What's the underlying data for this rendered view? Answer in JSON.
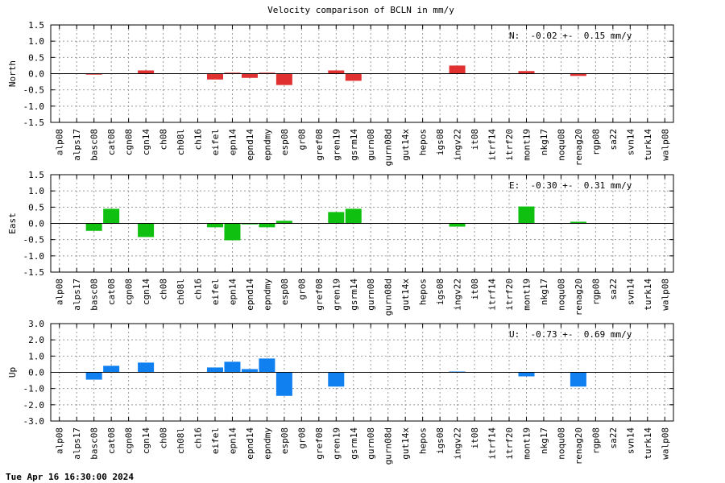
{
  "chart_data": {
    "title": "Velocity comparison of BCLN in mm/y",
    "type": "bar",
    "categories": [
      "alp08",
      "alps17",
      "basc08",
      "cat08",
      "cgn08",
      "cgn14",
      "ch08",
      "ch08l",
      "ch16",
      "eifel",
      "epn14",
      "epnd14",
      "epndmy",
      "esp08",
      "gr08",
      "gref08",
      "gren19",
      "gsrm14",
      "gurn08",
      "gurn08d",
      "gut14x",
      "hepos",
      "igs08",
      "ingv22",
      "it08",
      "itrf14",
      "itrf20",
      "mont19",
      "nkg17",
      "noqu08",
      "renag20",
      "rgp08",
      "sa22",
      "svn14",
      "turk14",
      "walp08"
    ],
    "panels": [
      {
        "ylabel": "North",
        "color": "#e03030",
        "ylim": [
          -1.5,
          1.5
        ],
        "ticks": [
          "1.5",
          "1.0",
          "0.5",
          "0.0",
          "-0.5",
          "-1.0",
          "-1.5"
        ],
        "tick_values": [
          1.5,
          1.0,
          0.5,
          0.0,
          -0.5,
          -1.0,
          -1.5
        ],
        "stat": "N:  -0.02 +-  0.15 mm/y",
        "values": [
          0,
          0,
          -0.03,
          0,
          0,
          0.1,
          0,
          0,
          0,
          -0.18,
          0.03,
          -0.13,
          0.03,
          -0.35,
          0,
          0,
          0.1,
          -0.22,
          0,
          0,
          0,
          0,
          0,
          0.25,
          0,
          0,
          0,
          0.08,
          0,
          0,
          -0.07,
          0,
          0,
          0,
          0,
          0
        ]
      },
      {
        "ylabel": "East",
        "color": "#10c010",
        "ylim": [
          -1.5,
          1.5
        ],
        "ticks": [
          "1.5",
          "1.0",
          "0.5",
          "0.0",
          "-0.5",
          "-1.0",
          "-1.5"
        ],
        "tick_values": [
          1.5,
          1.0,
          0.5,
          0.0,
          -0.5,
          -1.0,
          -1.5
        ],
        "stat": "E:  -0.30 +-  0.31 mm/y",
        "values": [
          0,
          0,
          -0.23,
          0.45,
          0,
          -0.42,
          0,
          0,
          0,
          -0.12,
          -0.52,
          -0.03,
          -0.12,
          0.08,
          0,
          0,
          0.35,
          0.45,
          0,
          0,
          0,
          0,
          0,
          -0.1,
          0,
          0,
          0,
          0.52,
          0,
          0,
          0.05,
          0,
          0,
          0,
          0,
          0
        ]
      },
      {
        "ylabel": "Up",
        "color": "#1080f0",
        "ylim": [
          -3.0,
          3.0
        ],
        "ticks": [
          "3.0",
          "2.0",
          "1.0",
          "0.0",
          "-1.0",
          "-2.0",
          "-3.0"
        ],
        "tick_values": [
          3.0,
          2.0,
          1.0,
          0.0,
          -1.0,
          -2.0,
          -3.0
        ],
        "stat": "U:  -0.73 +-  0.69 mm/y",
        "values": [
          0,
          0,
          -0.45,
          0.4,
          0,
          0.6,
          0,
          0,
          0,
          0.3,
          0.65,
          0.2,
          0.85,
          -1.45,
          0,
          0,
          -0.88,
          0,
          0,
          0,
          0,
          0,
          0,
          0.05,
          0,
          0,
          0,
          -0.25,
          0,
          0,
          -0.88,
          0,
          0,
          0,
          0,
          0
        ]
      }
    ],
    "grid": true
  },
  "footer": "Tue Apr 16 16:30:00 2024"
}
